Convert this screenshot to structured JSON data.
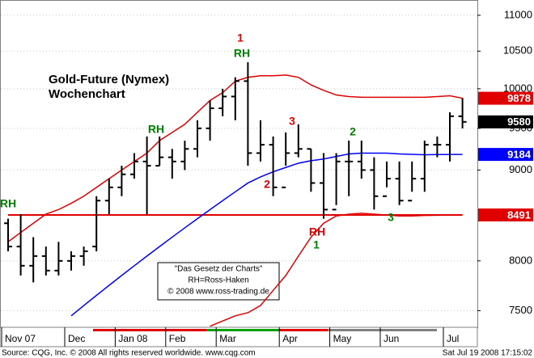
{
  "chart_data": {
    "type": "ohlc",
    "title": "Gold-Future (Nymex)",
    "subtitle": "Wochenchart",
    "categories": [
      "Nov 07",
      null,
      null,
      null,
      null,
      "Dec",
      null,
      null,
      null,
      "Jan 08",
      null,
      null,
      null,
      "Feb",
      null,
      null,
      null,
      "Mar",
      null,
      null,
      null,
      null,
      "Apr",
      null,
      null,
      null,
      "May",
      null,
      null,
      null,
      "Jun",
      null,
      null,
      null,
      null,
      "Jul",
      null
    ],
    "opens": [
      8400,
      8150,
      7950,
      8050,
      7900,
      8000,
      8050,
      8150,
      8650,
      8800,
      8950,
      9100,
      9050,
      9150,
      9100,
      9250,
      9500,
      9750,
      9900,
      10100,
      9200,
      9300,
      8800,
      9200,
      9250,
      8850,
      8550,
      9100,
      9100,
      9000,
      8700,
      8900,
      8650,
      8900,
      9300,
      9300,
      9650
    ],
    "highs": [
      8450,
      8500,
      8250,
      8150,
      8200,
      8100,
      8150,
      8700,
      8900,
      9050,
      9200,
      9400,
      9400,
      9250,
      9350,
      9600,
      9850,
      10000,
      10150,
      10350,
      9600,
      9400,
      9450,
      9550,
      9250,
      9200,
      9200,
      9350,
      9350,
      9150,
      9100,
      9100,
      9100,
      9350,
      9400,
      9700,
      9880
    ],
    "lows": [
      8100,
      7850,
      7780,
      7850,
      7850,
      7900,
      7950,
      8100,
      8500,
      8700,
      8900,
      8500,
      9050,
      8900,
      9000,
      9150,
      9350,
      9650,
      9600,
      9050,
      9100,
      8700,
      9050,
      9150,
      8750,
      8450,
      8600,
      8700,
      8900,
      8550,
      8800,
      8600,
      8750,
      8750,
      9150,
      9100,
      9500
    ],
    "closes": [
      8150,
      7950,
      8050,
      7900,
      8000,
      8050,
      8100,
      8650,
      8800,
      8950,
      9100,
      9050,
      9150,
      9100,
      9250,
      9500,
      9750,
      9900,
      10100,
      9200,
      9300,
      8800,
      9200,
      9250,
      8850,
      8550,
      9100,
      9100,
      9000,
      8700,
      8900,
      8650,
      8900,
      9300,
      9300,
      9650,
      9580
    ],
    "series": [
      {
        "color": "#e00000",
        "values": [
          8200,
          8300,
          8400,
          8500,
          8550,
          8620,
          8700,
          8800,
          8900,
          9000,
          9100,
          9200,
          9350,
          9450,
          9550,
          9700,
          9850,
          9950,
          10100,
          10150,
          10170,
          10170,
          10180,
          10150,
          10050,
          9980,
          9920,
          9900,
          9890,
          9890,
          9890,
          9890,
          9890,
          9890,
          9900,
          9910,
          9878
        ]
      },
      {
        "color": "#0000ff",
        "values": [
          null,
          null,
          null,
          null,
          null,
          7450,
          7550,
          7650,
          7750,
          7850,
          7950,
          8050,
          8150,
          8250,
          8350,
          8450,
          8550,
          8650,
          8750,
          8850,
          8920,
          8980,
          9030,
          9080,
          9110,
          9130,
          9160,
          9190,
          9200,
          9200,
          9200,
          9190,
          9185,
          9180,
          9182,
          9184,
          9184
        ]
      },
      {
        "color": "#e00000",
        "values": [
          null,
          null,
          null,
          null,
          null,
          null,
          null,
          null,
          null,
          null,
          null,
          null,
          null,
          null,
          null,
          null,
          7350,
          7400,
          7450,
          7480,
          7550,
          7700,
          7850,
          8050,
          8250,
          8400,
          8480,
          8500,
          8510,
          8500,
          8490,
          8480,
          8480,
          8485,
          8488,
          8490,
          8491
        ]
      }
    ],
    "price_markers": [
      {
        "value": 9878,
        "color": "#e00000"
      },
      {
        "value": 9580,
        "color": "#000000"
      },
      {
        "value": 9184,
        "color": "#0000ff"
      },
      {
        "value": 8491,
        "color": "#e00000"
      }
    ],
    "ylim": [
      7340,
      11220
    ],
    "log_scale": true,
    "yticks": [
      7500,
      8000,
      9000,
      9500,
      10000,
      10500,
      11000
    ],
    "grid": true,
    "annotations": [
      {
        "text": "RH",
        "color": "#008000"
      },
      {
        "text": "RH",
        "color": "#008000"
      },
      {
        "text": "1",
        "color": "#e00000"
      },
      {
        "text": "RH",
        "color": "#008000"
      },
      {
        "text": "3",
        "color": "#e00000"
      },
      {
        "text": "2",
        "color": "#008000"
      },
      {
        "text": "2",
        "color": "#e00000"
      },
      {
        "text": "RH",
        "color": "#e00000"
      },
      {
        "text": "1",
        "color": "#008000"
      },
      {
        "text": "3",
        "color": "#008000"
      }
    ],
    "info_box": [
      "\"Das Gesetz der Charts\"",
      "RH=Ross-Haken",
      "© 2008 www.ross-trading.de"
    ],
    "source": "Source: CQG, Inc. © 2008 All rights reserved worldwide. www.cqg.com",
    "timestamp": "Sat Jul 19 2008 17:15:02"
  }
}
